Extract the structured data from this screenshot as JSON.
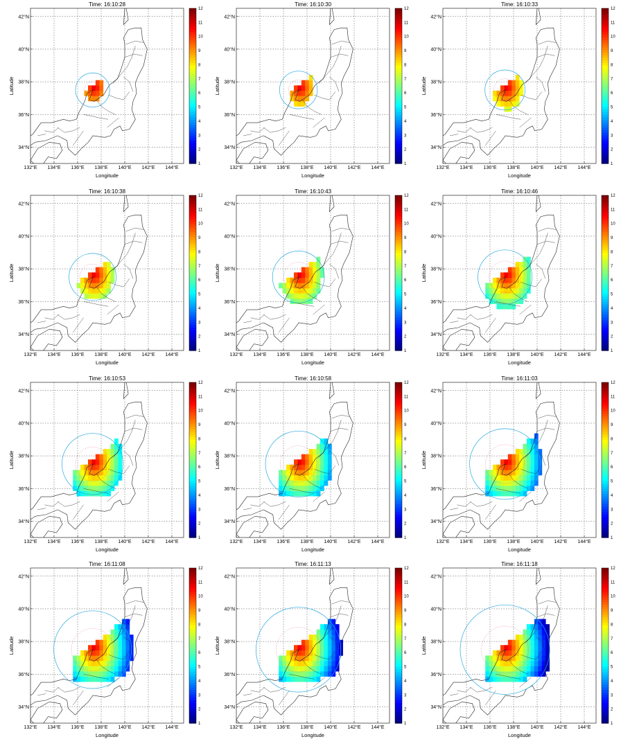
{
  "figure": {
    "panels": [
      {
        "title": "Time: 16:10:28",
        "radius_outer": 1.45,
        "radius_inner": 0.7
      },
      {
        "title": "Time: 16:10:30",
        "radius_outer": 1.6,
        "radius_inner": 0.85
      },
      {
        "title": "Time: 16:10:33",
        "radius_outer": 1.7,
        "radius_inner": 0.95
      },
      {
        "title": "Time: 16:10:38",
        "radius_outer": 2.0,
        "radius_inner": 1.1
      },
      {
        "title": "Time: 16:10:43",
        "radius_outer": 2.2,
        "radius_inner": 1.25
      },
      {
        "title": "Time: 16:10:46",
        "radius_outer": 2.3,
        "radius_inner": 1.35
      },
      {
        "title": "Time: 16:10:53",
        "radius_outer": 2.6,
        "radius_inner": 1.45
      },
      {
        "title": "Time: 16:10:58",
        "radius_outer": 2.8,
        "radius_inner": 1.55
      },
      {
        "title": "Time: 16:11:03",
        "radius_outer": 3.0,
        "radius_inner": 1.65
      },
      {
        "title": "Time: 16:11:08",
        "radius_outer": 3.3,
        "radius_inner": 1.8
      },
      {
        "title": "Time: 16:11:13",
        "radius_outer": 3.6,
        "radius_inner": 1.9
      },
      {
        "title": "Time: 16:11:18",
        "radius_outer": 3.8,
        "radius_inner": 2.0
      }
    ]
  },
  "chart_data": {
    "type": "heatmap",
    "xlabel": "Longitude",
    "ylabel": "Latitude",
    "xlim": [
      132,
      145
    ],
    "ylim": [
      33,
      42.5
    ],
    "x_ticks": [
      "132°E",
      "134°E",
      "136°E",
      "138°E",
      "140°E",
      "142°E",
      "144°E"
    ],
    "y_ticks": [
      "34°N",
      "36°N",
      "38°N",
      "40°N",
      "42°N"
    ],
    "colorbar": {
      "min": 1,
      "max": 12,
      "ticks": [
        "1",
        "2",
        "3",
        "4",
        "5",
        "6",
        "7",
        "8",
        "9",
        "10",
        "11",
        "12"
      ]
    },
    "epicenter": {
      "lon": 137.27,
      "lat": 37.5
    },
    "grid": true,
    "colors": {
      "wave_circle": "#29a9e0",
      "inner_circle": "#e05080",
      "coast": "#222222",
      "grid": "#444444"
    }
  }
}
